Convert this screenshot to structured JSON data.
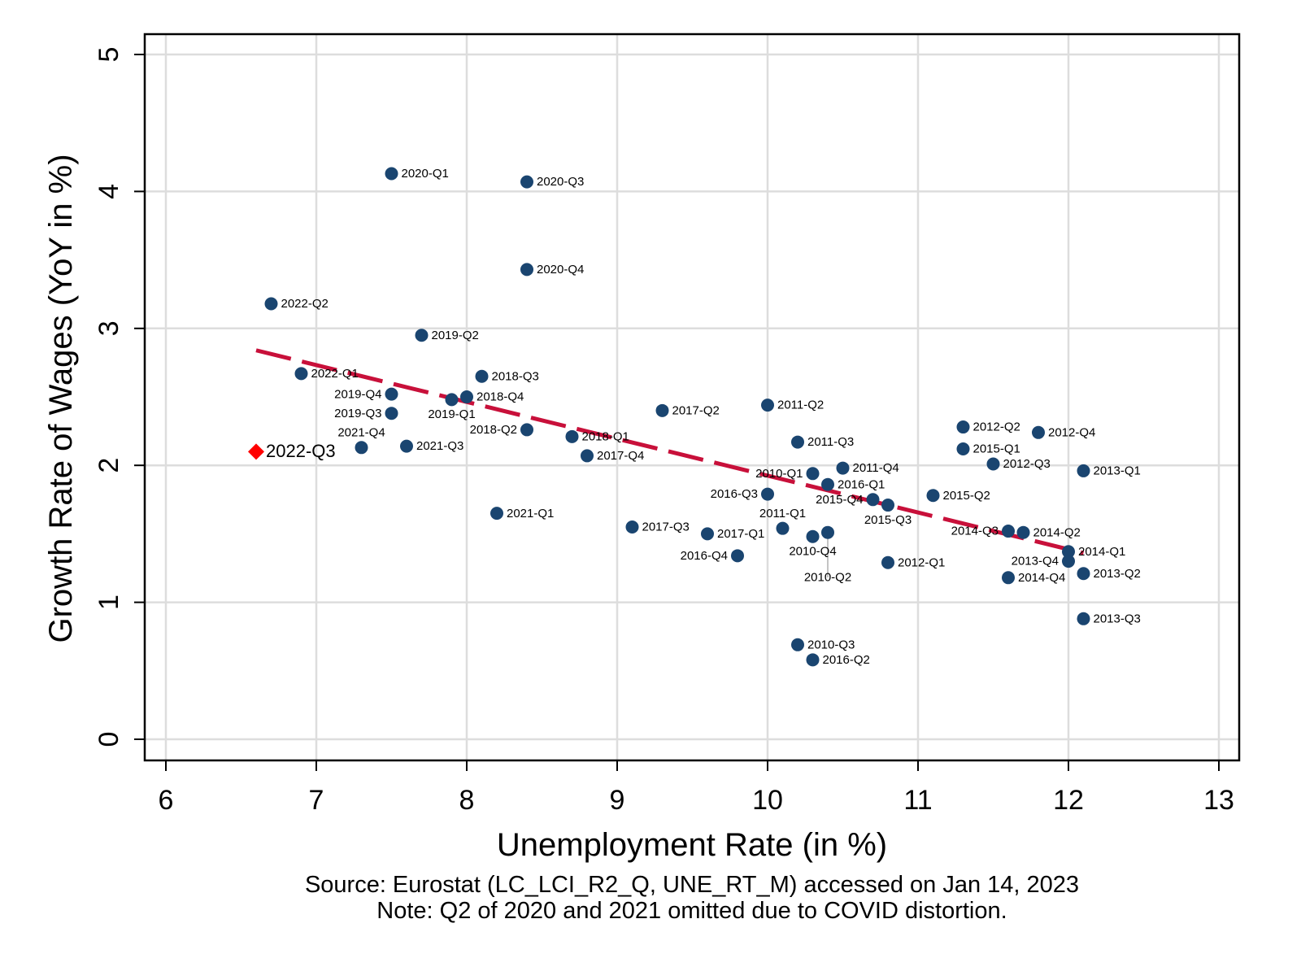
{
  "chart_data": {
    "type": "scatter",
    "xlabel": "Unemployment Rate (in %)",
    "ylabel": "Growth Rate of Wages (YoY in %)",
    "xlim": [
      6,
      13
    ],
    "ylim": [
      0,
      5
    ],
    "xticks": [
      "6",
      "7",
      "8",
      "9",
      "10",
      "11",
      "12",
      "13"
    ],
    "yticks": [
      "0",
      "1",
      "2",
      "3",
      "4",
      "5"
    ],
    "grid": true,
    "colors": {
      "points": "#1a4570",
      "highlight": "#ff0000",
      "fit_line": "#c8103a",
      "grid": "#dddddd"
    },
    "points": [
      {
        "label": "2020-Q1",
        "x": 7.5,
        "y": 4.13
      },
      {
        "label": "2020-Q3",
        "x": 8.4,
        "y": 4.07
      },
      {
        "label": "2020-Q4",
        "x": 8.4,
        "y": 3.43
      },
      {
        "label": "2022-Q2",
        "x": 6.7,
        "y": 3.18
      },
      {
        "label": "2019-Q2",
        "x": 7.7,
        "y": 2.95
      },
      {
        "label": "2022-Q1",
        "x": 6.9,
        "y": 2.67
      },
      {
        "label": "2018-Q3",
        "x": 8.1,
        "y": 2.65
      },
      {
        "label": "2019-Q4",
        "x": 7.5,
        "y": 2.52
      },
      {
        "label": "2019-Q1",
        "x": 7.9,
        "y": 2.48
      },
      {
        "label": "2018-Q4",
        "x": 8.0,
        "y": 2.5
      },
      {
        "label": "2019-Q3",
        "x": 7.5,
        "y": 2.38
      },
      {
        "label": "2017-Q2",
        "x": 9.3,
        "y": 2.4
      },
      {
        "label": "2011-Q2",
        "x": 10.0,
        "y": 2.44
      },
      {
        "label": "2018-Q2",
        "x": 8.4,
        "y": 2.26
      },
      {
        "label": "2018-Q1",
        "x": 8.7,
        "y": 2.21
      },
      {
        "label": "2017-Q4",
        "x": 8.8,
        "y": 2.07
      },
      {
        "label": "2021-Q4",
        "x": 7.3,
        "y": 2.13
      },
      {
        "label": "2021-Q3",
        "x": 7.6,
        "y": 2.14
      },
      {
        "label": "2021-Q1",
        "x": 8.2,
        "y": 1.65
      },
      {
        "label": "2011-Q3",
        "x": 10.2,
        "y": 2.17
      },
      {
        "label": "2010-Q1",
        "x": 10.3,
        "y": 1.94
      },
      {
        "label": "2011-Q4",
        "x": 10.5,
        "y": 1.98
      },
      {
        "label": "2016-Q1",
        "x": 10.4,
        "y": 1.86
      },
      {
        "label": "2016-Q3",
        "x": 10.0,
        "y": 1.79
      },
      {
        "label": "2015-Q4",
        "x": 10.7,
        "y": 1.75
      },
      {
        "label": "2015-Q3",
        "x": 10.8,
        "y": 1.71
      },
      {
        "label": "2015-Q2",
        "x": 11.1,
        "y": 1.78
      },
      {
        "label": "2012-Q2",
        "x": 11.3,
        "y": 2.28
      },
      {
        "label": "2012-Q4",
        "x": 11.8,
        "y": 2.24
      },
      {
        "label": "2015-Q1",
        "x": 11.3,
        "y": 2.12
      },
      {
        "label": "2012-Q3",
        "x": 11.5,
        "y": 2.01
      },
      {
        "label": "2013-Q1",
        "x": 12.1,
        "y": 1.96
      },
      {
        "label": "2017-Q3",
        "x": 9.1,
        "y": 1.55
      },
      {
        "label": "2017-Q1",
        "x": 9.6,
        "y": 1.5
      },
      {
        "label": "2011-Q1",
        "x": 10.1,
        "y": 1.54
      },
      {
        "label": "2010-Q4",
        "x": 10.3,
        "y": 1.48
      },
      {
        "label": "2010-Q2",
        "x": 10.4,
        "y": 1.51
      },
      {
        "label": "2016-Q4",
        "x": 9.8,
        "y": 1.34
      },
      {
        "label": "2012-Q1",
        "x": 10.8,
        "y": 1.29
      },
      {
        "label": "2014-Q3",
        "x": 11.6,
        "y": 1.52
      },
      {
        "label": "2014-Q2",
        "x": 11.7,
        "y": 1.51
      },
      {
        "label": "2014-Q1",
        "x": 12.0,
        "y": 1.37
      },
      {
        "label": "2013-Q4",
        "x": 12.0,
        "y": 1.3
      },
      {
        "label": "2014-Q4",
        "x": 11.6,
        "y": 1.18
      },
      {
        "label": "2013-Q2",
        "x": 12.1,
        "y": 1.21
      },
      {
        "label": "2013-Q3",
        "x": 12.1,
        "y": 0.88
      },
      {
        "label": "2010-Q3",
        "x": 10.2,
        "y": 0.69
      },
      {
        "label": "2016-Q2",
        "x": 10.3,
        "y": 0.58
      }
    ],
    "highlight": {
      "label": "2022-Q3",
      "x": 6.6,
      "y": 2.1
    },
    "fit_line": {
      "x": [
        6.6,
        12.1
      ],
      "y": [
        2.84,
        1.36
      ],
      "style": "dashed"
    },
    "notes": [
      "Source: Eurostat (LC_LCI_R2_Q, UNE_RT_M) accessed on Jan 14, 2023",
      "Note: Q2 of 2020 and 2021 omitted due to COVID distortion."
    ]
  }
}
